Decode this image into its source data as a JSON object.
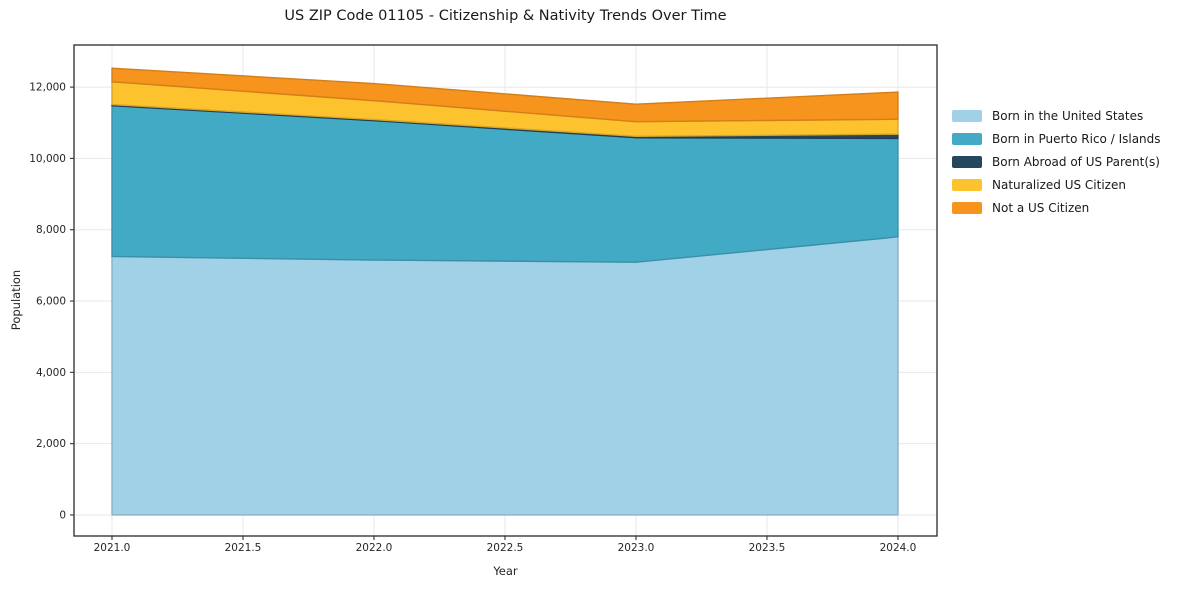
{
  "chart_data": {
    "type": "area",
    "stacked": true,
    "title": "US ZIP Code 01105 - Citizenship & Nativity Trends Over Time",
    "xlabel": "Year",
    "ylabel": "Population",
    "x": [
      2021,
      2022,
      2023,
      2024
    ],
    "series": [
      {
        "name": "Born in the United States",
        "color": "#a1d1e7",
        "values": [
          7250,
          7150,
          7090,
          7800
        ]
      },
      {
        "name": "Born in Puerto Rico / Islands",
        "color": "#43aac6",
        "values": [
          4230,
          3910,
          3490,
          2760
        ]
      },
      {
        "name": "Born Abroad of US Parent(s)",
        "color": "#25475e",
        "values": [
          30,
          30,
          40,
          120
        ]
      },
      {
        "name": "Naturalized US Citizen",
        "color": "#fdc32f",
        "values": [
          640,
          530,
          410,
          420
        ]
      },
      {
        "name": "Not a US Citizen",
        "color": "#f7941e",
        "values": [
          380,
          480,
          490,
          760
        ]
      }
    ],
    "cumulative_totals": [
      12530,
      12100,
      11520,
      11860
    ],
    "xticks": [
      2021.0,
      2021.5,
      2022.0,
      2022.5,
      2023.0,
      2023.5,
      2024.0
    ],
    "xtick_labels": [
      "2021.0",
      "2021.5",
      "2022.0",
      "2022.5",
      "2023.0",
      "2023.5",
      "2024.0"
    ],
    "yticks": [
      0,
      2000,
      4000,
      6000,
      8000,
      10000,
      12000
    ],
    "ytick_labels": [
      "0",
      "2,000",
      "4,000",
      "6,000",
      "8,000",
      "10,000",
      "12,000"
    ],
    "xlim": [
      2020.855,
      2024.149
    ],
    "ylim": [
      -590,
      13181
    ],
    "grid": true,
    "legend_position": "right-outside",
    "style": {
      "background": "#ffffff",
      "grid_color": "#e8e8e8",
      "frame_color": "#2a2a2a",
      "tick_color": "#333333",
      "text_color": "#262626"
    }
  }
}
